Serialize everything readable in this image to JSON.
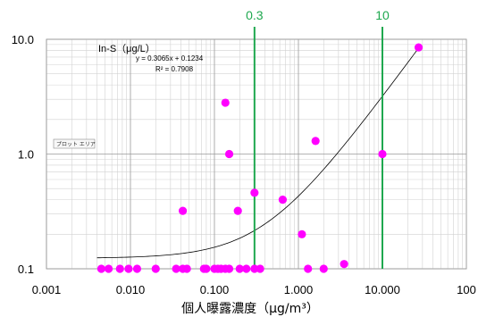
{
  "chart_data": {
    "type": "scatter",
    "x_scale": "log",
    "y_scale": "log",
    "xlim": [
      0.001,
      100
    ],
    "ylim": [
      0.1,
      10
    ],
    "x_ticks": [
      "0.001",
      "0.010",
      "0.100",
      "1.000",
      "10.000",
      "100"
    ],
    "y_ticks": [
      "0.1",
      "1.0",
      "10.0"
    ],
    "xlabel": "個人曝露濃度（μg/m³）",
    "legend_text": "In-S（μg/L）",
    "grid": true,
    "marker_color": "#ff00ff",
    "trend_color": "#000000",
    "reference_color": "#1fa84f",
    "trendline": {
      "equation": "y = 0.3065x + 0.1234",
      "r2": "R² = 0.7908",
      "slope": 0.3065,
      "intercept": 0.1234,
      "x_range": [
        0.004,
        27
      ]
    },
    "reference_lines": [
      {
        "x": 0.3,
        "label": "0.3"
      },
      {
        "x": 10,
        "label": "10"
      }
    ],
    "points": [
      {
        "x": 0.0045,
        "y": 0.1
      },
      {
        "x": 0.0055,
        "y": 0.1
      },
      {
        "x": 0.0075,
        "y": 0.1
      },
      {
        "x": 0.0095,
        "y": 0.1
      },
      {
        "x": 0.012,
        "y": 0.1
      },
      {
        "x": 0.02,
        "y": 0.1
      },
      {
        "x": 0.035,
        "y": 0.1
      },
      {
        "x": 0.042,
        "y": 0.1
      },
      {
        "x": 0.047,
        "y": 0.1
      },
      {
        "x": 0.075,
        "y": 0.1
      },
      {
        "x": 0.08,
        "y": 0.1
      },
      {
        "x": 0.1,
        "y": 0.1
      },
      {
        "x": 0.11,
        "y": 0.1
      },
      {
        "x": 0.12,
        "y": 0.1
      },
      {
        "x": 0.135,
        "y": 0.1
      },
      {
        "x": 0.15,
        "y": 0.1
      },
      {
        "x": 0.2,
        "y": 0.1
      },
      {
        "x": 0.24,
        "y": 0.1
      },
      {
        "x": 0.3,
        "y": 0.1
      },
      {
        "x": 0.35,
        "y": 0.1
      },
      {
        "x": 1.3,
        "y": 0.1
      },
      {
        "x": 2.0,
        "y": 0.1
      },
      {
        "x": 3.5,
        "y": 0.11
      },
      {
        "x": 0.042,
        "y": 0.32
      },
      {
        "x": 0.135,
        "y": 2.8
      },
      {
        "x": 0.15,
        "y": 1.0
      },
      {
        "x": 0.19,
        "y": 0.32
      },
      {
        "x": 0.3,
        "y": 0.46
      },
      {
        "x": 0.65,
        "y": 0.4
      },
      {
        "x": 1.1,
        "y": 0.2
      },
      {
        "x": 1.6,
        "y": 1.3
      },
      {
        "x": 10,
        "y": 1.0
      },
      {
        "x": 27,
        "y": 8.5
      }
    ]
  },
  "tooltip": {
    "label": "プロット エリア"
  }
}
